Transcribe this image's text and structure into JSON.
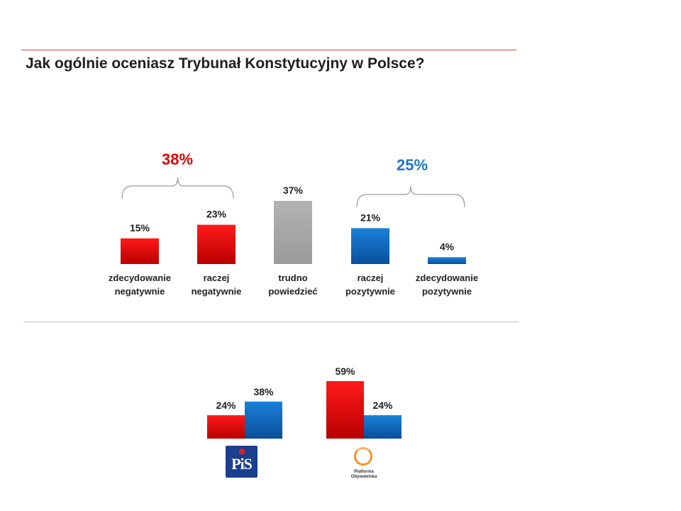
{
  "chart_data": [
    {
      "type": "bar",
      "title": "Jak ogólnie oceniasz Trybunał Konstytucyjny w Polsce?",
      "categories": [
        [
          "zdecydowanie",
          "negatywnie"
        ],
        [
          "raczej",
          "negatywnie"
        ],
        [
          "trudno",
          "powiedzieć"
        ],
        [
          "raczej",
          "pozytywnie"
        ],
        [
          "zdecydowanie",
          "pozytywnie"
        ]
      ],
      "values": [
        15,
        23,
        37,
        21,
        4
      ],
      "value_labels": [
        "15%",
        "23%",
        "37%",
        "21%",
        "4%"
      ],
      "colors": [
        "#e00000",
        "#e00000",
        "#a6a6a6",
        "#0e6cc1",
        "#0e6cc1"
      ],
      "group_totals": [
        {
          "label": "38%",
          "color": "#e00000",
          "covers": [
            0,
            1
          ]
        },
        {
          "label": "25%",
          "color": "#1f77c4",
          "covers": [
            3,
            4
          ]
        }
      ],
      "ylim": [
        0,
        40
      ]
    },
    {
      "type": "bar",
      "groups": [
        {
          "logo": "pis-logo",
          "logo_text": "PiS",
          "values": [
            24,
            38
          ],
          "value_labels": [
            "24%",
            "38%"
          ]
        },
        {
          "logo": "po-logo",
          "logo_text": "Platforma Obywatelska",
          "values": [
            59,
            24
          ],
          "value_labels": [
            "59%",
            "24%"
          ]
        }
      ],
      "series_colors": [
        "#e00000",
        "#0e6cc1"
      ],
      "ylim": [
        0,
        60
      ]
    }
  ]
}
